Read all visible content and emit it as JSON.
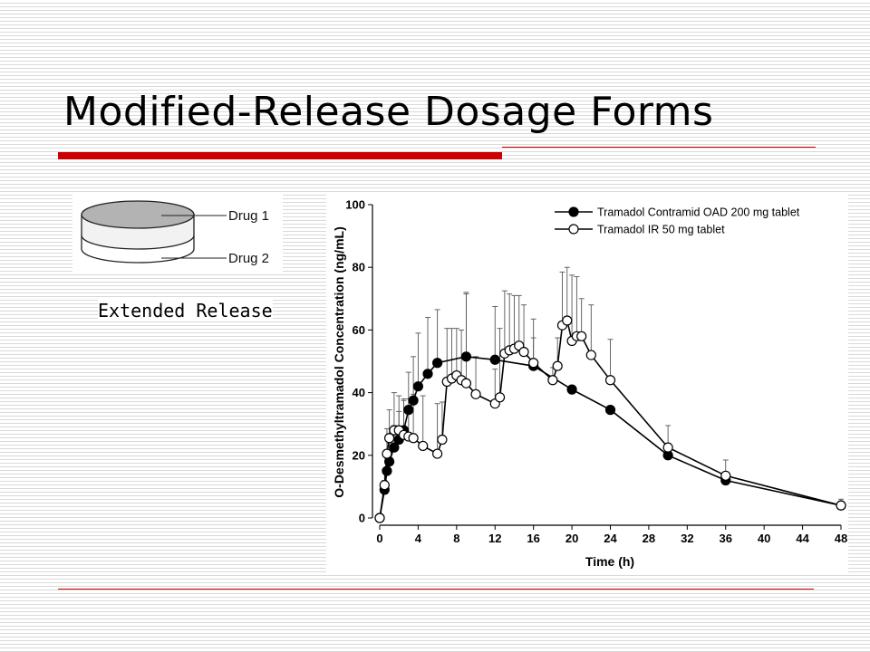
{
  "slide": {
    "title": "Modified-Release Dosage Forms",
    "caption": "Extended Release",
    "accent_color": "#cc0000"
  },
  "tablet_diagram": {
    "top_layer_label": "Drug 1",
    "bottom_layer_label": "Drug 2",
    "top_layer_color": "#b3b3b3"
  },
  "chart_data": {
    "type": "line",
    "title": "",
    "xlabel": "Time (h)",
    "ylabel": "O-Desmethyltramadol Concentration (ng/mL)",
    "xlim": [
      0,
      48
    ],
    "ylim": [
      0,
      100
    ],
    "xticks": [
      0,
      4,
      8,
      12,
      16,
      20,
      24,
      28,
      32,
      36,
      40,
      44,
      48
    ],
    "yticks": [
      0,
      20,
      40,
      60,
      80,
      100
    ],
    "legend_position": "top-right",
    "grid": false,
    "series": [
      {
        "name": "Tramadol Contramid OAD 200 mg tablet",
        "marker": "filled-circle",
        "color": "#000000",
        "points": [
          {
            "x": 0,
            "y": 0,
            "err": 0
          },
          {
            "x": 0.5,
            "y": 9,
            "err": 3
          },
          {
            "x": 0.75,
            "y": 15,
            "err": 4
          },
          {
            "x": 1,
            "y": 18,
            "err": 6
          },
          {
            "x": 1.5,
            "y": 22.5,
            "err": 7
          },
          {
            "x": 2,
            "y": 25,
            "err": 9
          },
          {
            "x": 2.5,
            "y": 28,
            "err": 10
          },
          {
            "x": 3,
            "y": 34.5,
            "err": 12
          },
          {
            "x": 3.5,
            "y": 37.5,
            "err": 14
          },
          {
            "x": 4,
            "y": 42,
            "err": 17
          },
          {
            "x": 5,
            "y": 46,
            "err": 18
          },
          {
            "x": 6,
            "y": 49.5,
            "err": 17
          },
          {
            "x": 9,
            "y": 51.5,
            "err": 20
          },
          {
            "x": 12,
            "y": 50.5,
            "err": 17
          },
          {
            "x": 16,
            "y": 48.5,
            "err": 15
          },
          {
            "x": 20,
            "y": 41,
            "err": 0
          },
          {
            "x": 24,
            "y": 34.5,
            "err": 0
          },
          {
            "x": 30,
            "y": 20,
            "err": 0
          },
          {
            "x": 36,
            "y": 12,
            "err": 0
          },
          {
            "x": 48,
            "y": 4,
            "err": 0
          }
        ]
      },
      {
        "name": "Tramadol IR 50 mg tablet",
        "marker": "open-circle",
        "color": "#000000",
        "points": [
          {
            "x": 0,
            "y": 0,
            "err": 0
          },
          {
            "x": 0.5,
            "y": 10.5,
            "err": 5
          },
          {
            "x": 0.75,
            "y": 20.5,
            "err": 8
          },
          {
            "x": 1,
            "y": 25.5,
            "err": 9
          },
          {
            "x": 1.5,
            "y": 28,
            "err": 12
          },
          {
            "x": 2,
            "y": 28,
            "err": 11
          },
          {
            "x": 2.5,
            "y": 26.5,
            "err": 11
          },
          {
            "x": 3,
            "y": 26,
            "err": 12
          },
          {
            "x": 3.5,
            "y": 25.5,
            "err": 14
          },
          {
            "x": 4.5,
            "y": 23,
            "err": 16
          },
          {
            "x": 6,
            "y": 20.5,
            "err": 16
          },
          {
            "x": 6.5,
            "y": 25,
            "err": 12
          },
          {
            "x": 7,
            "y": 43.5,
            "err": 17
          },
          {
            "x": 7.5,
            "y": 44.5,
            "err": 16
          },
          {
            "x": 8,
            "y": 45.5,
            "err": 15
          },
          {
            "x": 8.5,
            "y": 44,
            "err": 16
          },
          {
            "x": 9,
            "y": 43,
            "err": 29
          },
          {
            "x": 10,
            "y": 39.5,
            "err": 12
          },
          {
            "x": 12,
            "y": 36.5,
            "err": 11
          },
          {
            "x": 12.5,
            "y": 38.5,
            "err": 22
          },
          {
            "x": 13,
            "y": 52.5,
            "err": 20
          },
          {
            "x": 13.5,
            "y": 53.5,
            "err": 18
          },
          {
            "x": 14,
            "y": 54,
            "err": 17
          },
          {
            "x": 14.5,
            "y": 55,
            "err": 16
          },
          {
            "x": 15,
            "y": 53,
            "err": 15
          },
          {
            "x": 16,
            "y": 49.5,
            "err": 8
          },
          {
            "x": 18,
            "y": 44,
            "err": 4
          },
          {
            "x": 18.5,
            "y": 48.5,
            "err": 9
          },
          {
            "x": 19,
            "y": 61.5,
            "err": 17
          },
          {
            "x": 19.5,
            "y": 63,
            "err": 17
          },
          {
            "x": 20,
            "y": 56.5,
            "err": 21
          },
          {
            "x": 20.5,
            "y": 58,
            "err": 19
          },
          {
            "x": 21,
            "y": 58,
            "err": 12
          },
          {
            "x": 22,
            "y": 52,
            "err": 16
          },
          {
            "x": 24,
            "y": 44,
            "err": 13
          },
          {
            "x": 30,
            "y": 22.5,
            "err": 7
          },
          {
            "x": 36,
            "y": 13.5,
            "err": 5
          },
          {
            "x": 48,
            "y": 4,
            "err": 2
          }
        ]
      }
    ]
  }
}
